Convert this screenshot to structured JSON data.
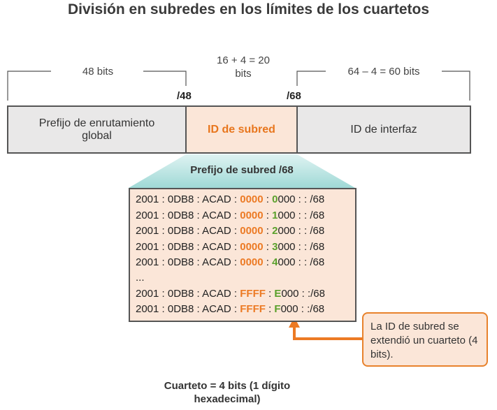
{
  "title": "División en subredes en los límites de los cuartetos",
  "top_labels": {
    "left": "48 bits",
    "middle_line1": "16 + 4 = 20",
    "middle_line2": "bits",
    "right": "64 – 4 = 60 bits"
  },
  "prefix_markers": {
    "p48": "/48",
    "p68": "/68"
  },
  "segments": {
    "global_prefix_line1": "Prefijo de enrutamiento",
    "global_prefix_line2": "global",
    "subnet_id": "ID de subred",
    "interface_id": "ID de interfaz"
  },
  "subnet_prefix_title": "Prefijo de subred /68",
  "address_rows": [
    {
      "base": "2001 : 0DB8 : ACAD : ",
      "hextet": "0000",
      "sep": " : ",
      "nibble": "0",
      "rest": "000 : : /68"
    },
    {
      "base": "2001 : 0DB8 : ACAD : ",
      "hextet": "0000",
      "sep": " : ",
      "nibble": "1",
      "rest": "000 : : /68"
    },
    {
      "base": "2001 : 0DB8 : ACAD : ",
      "hextet": "0000",
      "sep": " : ",
      "nibble": "2",
      "rest": "000 : : /68"
    },
    {
      "base": "2001 : 0DB8 : ACAD : ",
      "hextet": "0000",
      "sep": " : ",
      "nibble": "3",
      "rest": "000 : : /68"
    },
    {
      "base": "2001 : 0DB8 : ACAD : ",
      "hextet": "0000",
      "sep": " : ",
      "nibble": "4",
      "rest": "000 : : /68"
    },
    {
      "base": "...",
      "hextet": "",
      "sep": "",
      "nibble": "",
      "rest": ""
    },
    {
      "base": "2001 : 0DB8 : ACAD : ",
      "hextet": "FFFF",
      "sep": " : ",
      "nibble": "E",
      "rest": "000 : :/68"
    },
    {
      "base": "2001 : 0DB8 : ACAD : ",
      "hextet": "FFFF",
      "sep": " : ",
      "nibble": "F",
      "rest": "000 : :/68"
    }
  ],
  "callout_text": "La ID de subred se extendió un cuarteto (4 bits).",
  "footer_line1": "Cuarteto = 4 bits (1 dígito",
  "footer_line2": "hexadecimal)",
  "colors": {
    "accent_orange": "#ec7a24",
    "accent_green": "#5aa02c",
    "segment_gray": "#e9e8e8",
    "segment_peach": "#fbe6d8",
    "teal_gradient": "#bfe6e4"
  }
}
